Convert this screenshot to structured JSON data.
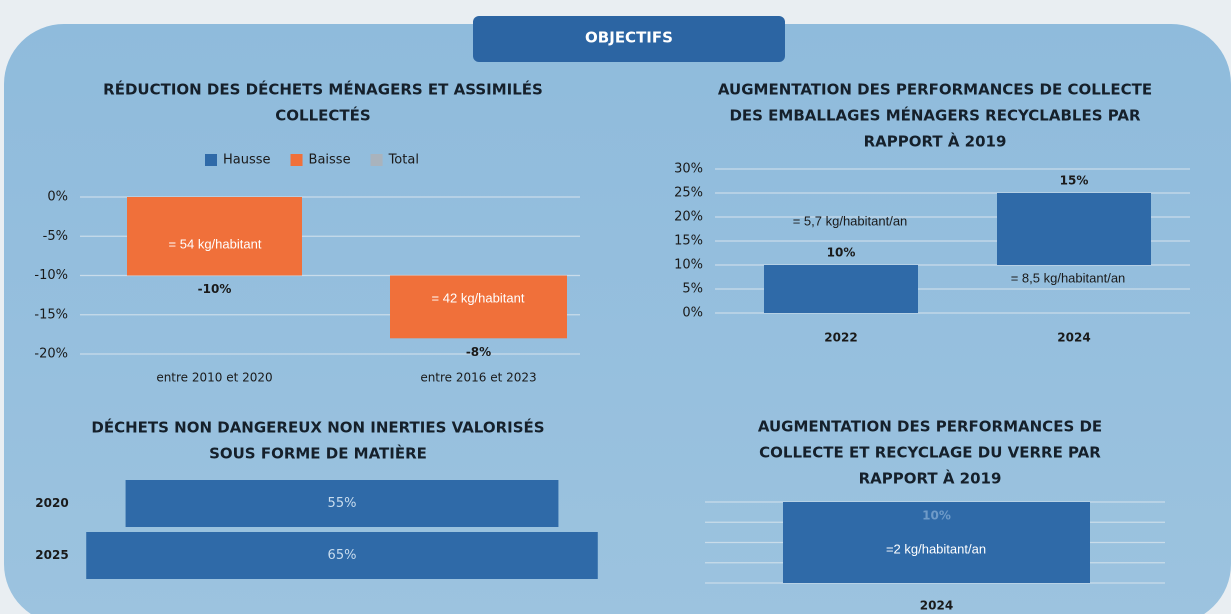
{
  "header": {
    "title": "OBJECTIFS"
  },
  "chart_data": [
    {
      "type": "waterfall",
      "title": [
        "RÉDUCTION DES DÉCHETS MÉNAGERS ET ASSIMILÉS",
        "COLLECTÉS"
      ],
      "legend": [
        {
          "name": "Hausse",
          "color": "#2f6aa8"
        },
        {
          "name": "Baisse",
          "color": "#f0703a"
        },
        {
          "name": "Total",
          "color": "#a9b3bd"
        }
      ],
      "categories": [
        "entre 2010 et 2020",
        "entre 2016 et 2023"
      ],
      "values": [
        -10,
        -8
      ],
      "value_labels": [
        "-10%",
        "-8%"
      ],
      "color": "#f0703a",
      "annotations": [
        "= 54 kg/habitant",
        "= 42 kg/habitant"
      ],
      "ylim": [
        -20,
        0
      ],
      "yticks": [
        {
          "value": 0,
          "label": "0%"
        },
        {
          "value": -5,
          "label": "-5%"
        },
        {
          "value": -10,
          "label": "-10%"
        },
        {
          "value": -15,
          "label": "-15%"
        },
        {
          "value": -20,
          "label": "-20%"
        }
      ],
      "grid": true
    },
    {
      "type": "waterfall",
      "title": [
        "AUGMENTATION DES PERFORMANCES DE COLLECTE",
        "DES EMBALLAGES MÉNAGERS RECYCLABLES PAR",
        "RAPPORT À 2019"
      ],
      "categories": [
        "2022",
        "2024"
      ],
      "values": [
        10,
        15
      ],
      "value_labels": [
        "10%",
        "15%"
      ],
      "color": "#2f6aa8",
      "annotations": [
        "= 5,7 kg/habitant/an",
        "= 8,5 kg/habitant/an"
      ],
      "ylim": [
        0,
        30
      ],
      "yticks": [
        {
          "value": 0,
          "label": "0%"
        },
        {
          "value": 5,
          "label": "5%"
        },
        {
          "value": 10,
          "label": "10%"
        },
        {
          "value": 15,
          "label": "15%"
        },
        {
          "value": 20,
          "label": "20%"
        },
        {
          "value": 25,
          "label": "25%"
        },
        {
          "value": 30,
          "label": "30%"
        }
      ],
      "grid": true
    },
    {
      "type": "funnel",
      "title": [
        "DÉCHETS NON DANGEREUX NON INERTIES VALORISÉS",
        "SOUS FORME DE MATIÈRE"
      ],
      "categories": [
        "2020",
        "2025"
      ],
      "values": [
        55,
        65
      ],
      "value_labels": [
        "55%",
        "65%"
      ],
      "color": "#2f6aa8"
    },
    {
      "type": "bar",
      "title": [
        "AUGMENTATION DES PERFORMANCES DE",
        "COLLECTE ET RECYCLAGE DU VERRE PAR",
        "RAPPORT À 2019"
      ],
      "categories": [
        "2024"
      ],
      "values": [
        10
      ],
      "value_labels": [
        "10%"
      ],
      "color": "#2f6aa8",
      "annotations": [
        "=2 kg/habitant/an"
      ],
      "ylim": [
        0,
        10
      ],
      "yticks": [
        0,
        2.5,
        5,
        7.5,
        10
      ],
      "show_tick_labels": false,
      "grid": true
    }
  ]
}
